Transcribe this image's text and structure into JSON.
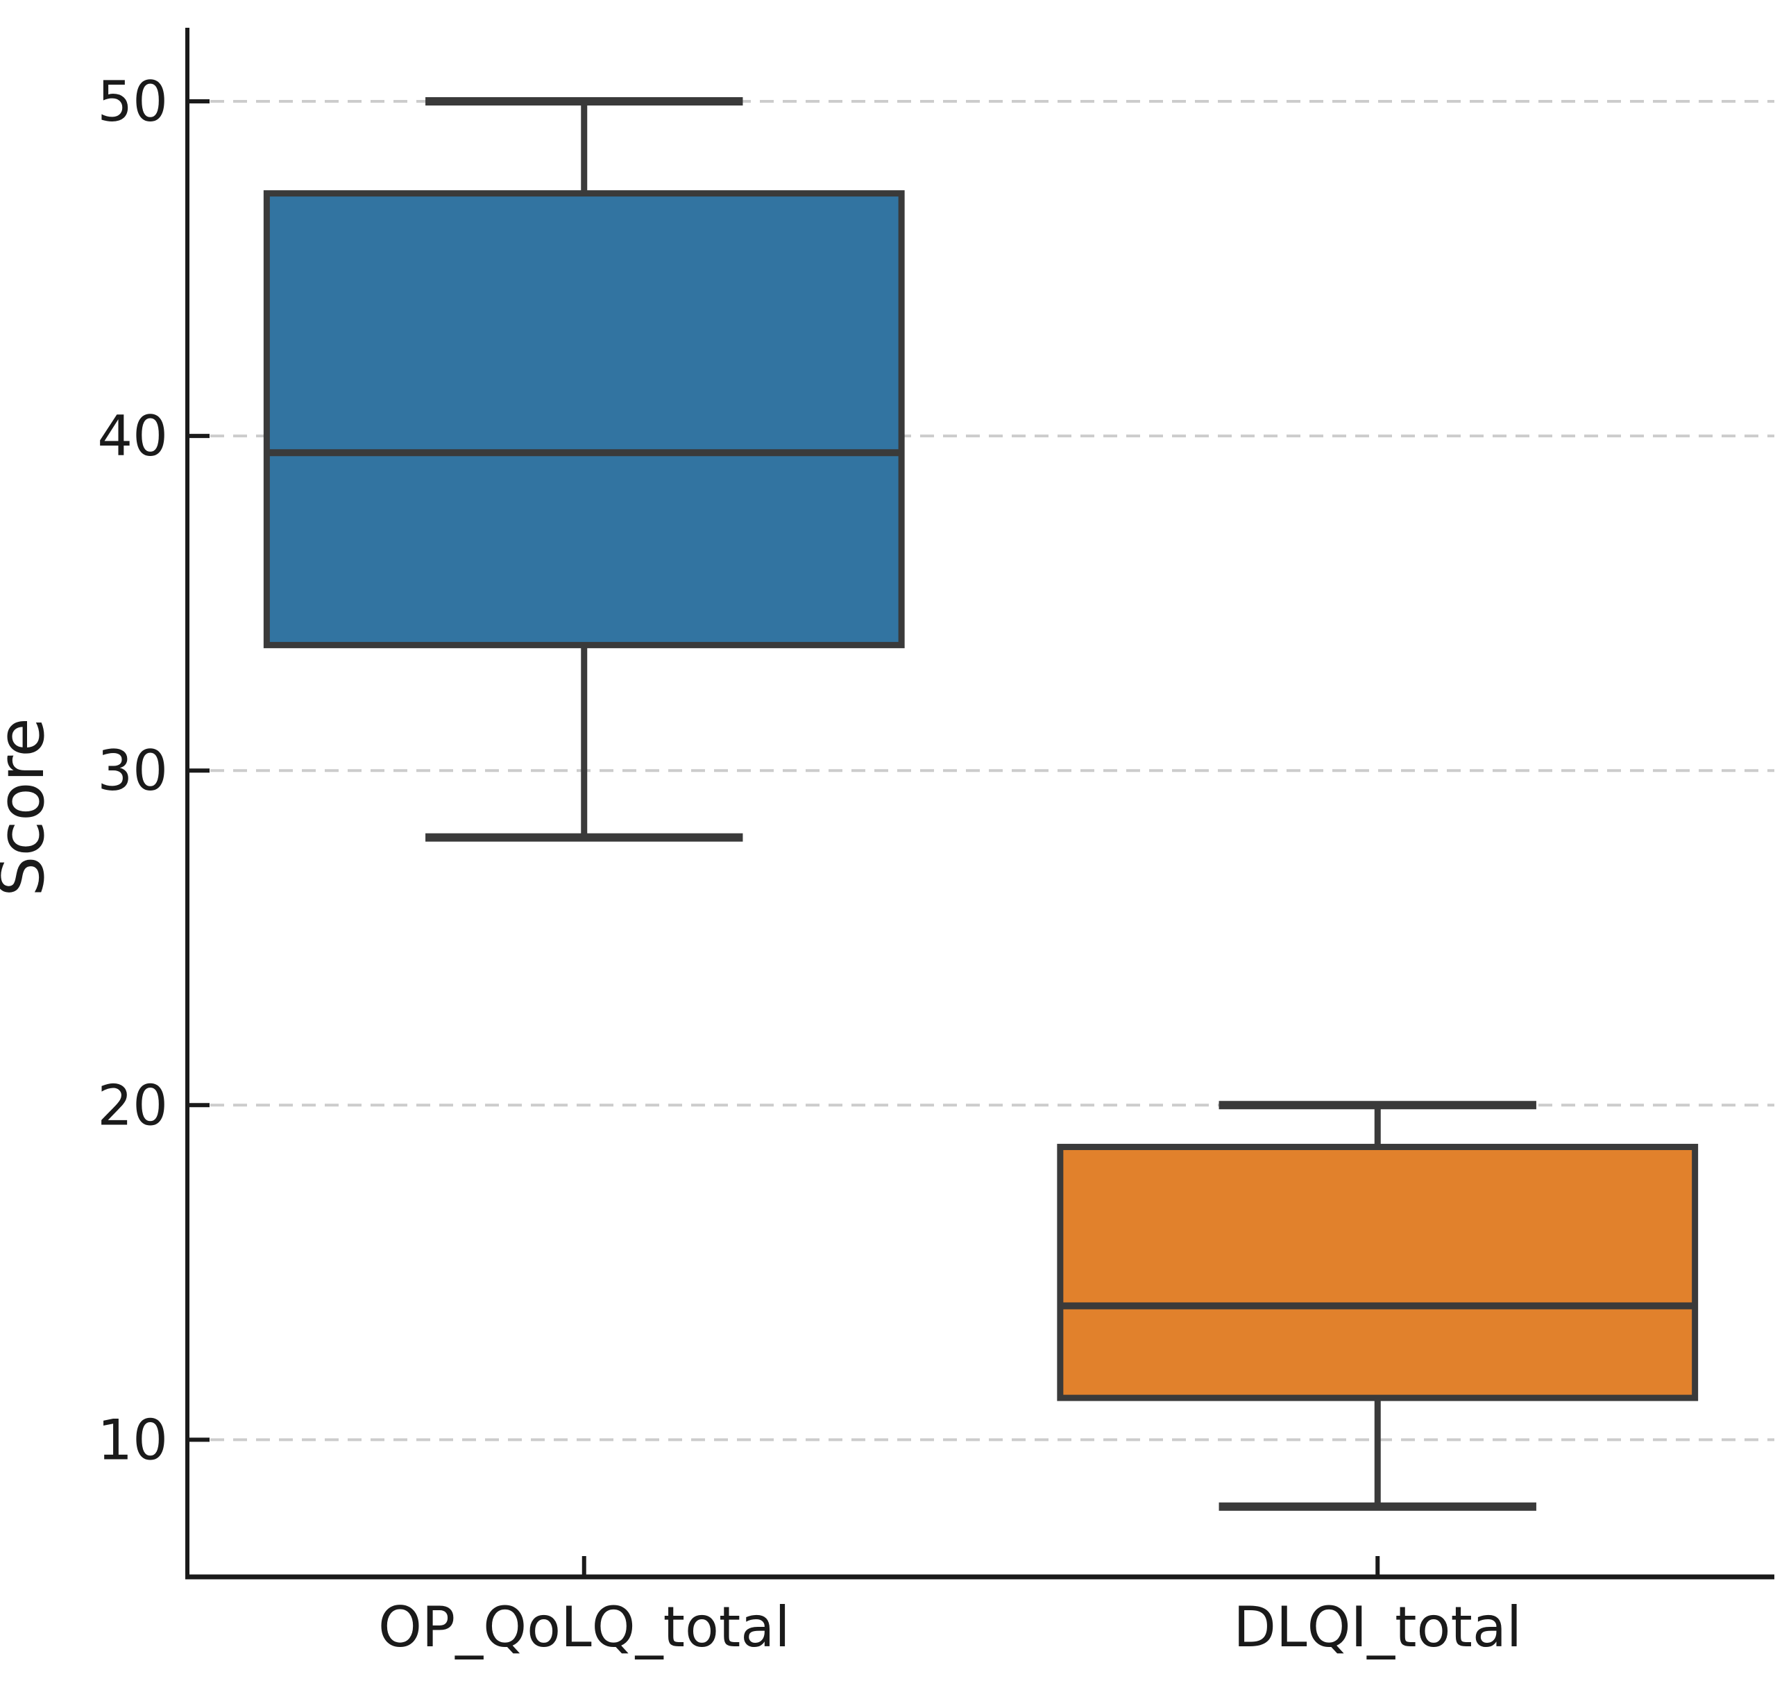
{
  "figure": {
    "title": "",
    "ylabel": "Score",
    "xlabel": ""
  },
  "chart_data": {
    "type": "box",
    "title": "",
    "xlabel": "",
    "ylabel": "Score",
    "categories": [
      "OP_QoLQ_total",
      "DLQI_total"
    ],
    "series": [
      {
        "name": "OP_QoLQ_total",
        "min": 28,
        "q1": 33.75,
        "median": 39.5,
        "q3": 47.25,
        "max": 50,
        "fill_color": "#3274A1"
      },
      {
        "name": "DLQI_total",
        "min": 8,
        "q1": 11.25,
        "median": 14,
        "q3": 18.75,
        "max": 20,
        "fill_color": "#E1812C"
      }
    ],
    "yticks": [
      10,
      20,
      30,
      40,
      50
    ],
    "ylim": [
      5.9,
      52.2
    ],
    "grid": "horizontal-dashed",
    "legend_position": "none",
    "edge_color": "#3A3A3A",
    "grid_color": "#CCCCCC",
    "axis_color": "#1A1A1A",
    "tick_label_color": "#262626",
    "background_color": "#FFFFFF"
  }
}
